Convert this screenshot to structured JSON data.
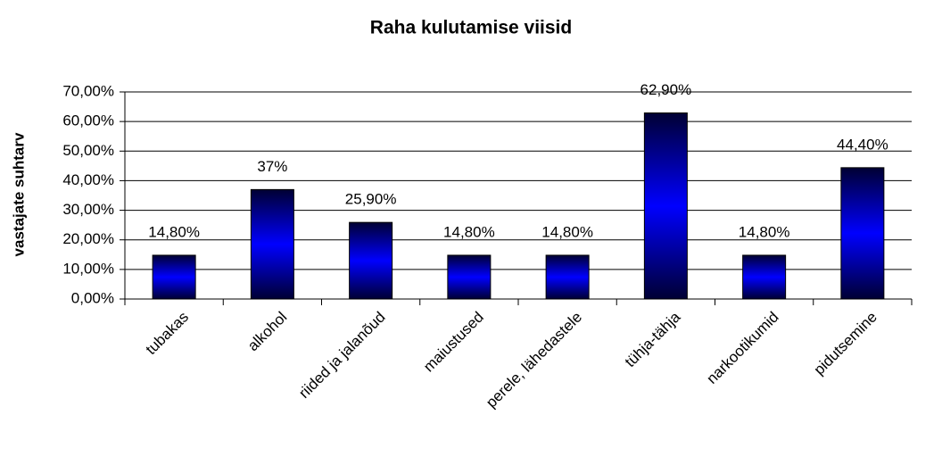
{
  "chart_data": {
    "type": "bar",
    "title": "Raha kulutamise viisid",
    "y_label": "vastajate suhtarv",
    "categories": [
      "tubakas",
      "alkohol",
      "riided ja jalanõud",
      "maiustused",
      "perele, lähedastele",
      "tühja-tähja",
      "narkootikumid",
      "pidutsemine"
    ],
    "values": [
      14.8,
      37,
      25.9,
      14.8,
      14.8,
      62.9,
      14.8,
      44.4
    ],
    "value_labels": [
      "14,80%",
      "37%",
      "25,90%",
      "14,80%",
      "14,80%",
      "62,90%",
      "14,80%",
      "44,40%"
    ],
    "color": "#0000ff",
    "ylim": [
      0,
      70
    ],
    "yticks": [
      {
        "value": 0,
        "label": "0,00%"
      },
      {
        "value": 10,
        "label": "10,00%"
      },
      {
        "value": 20,
        "label": "20,00%"
      },
      {
        "value": 30,
        "label": "30,00%"
      },
      {
        "value": 40,
        "label": "40,00%"
      },
      {
        "value": 50,
        "label": "50,00%"
      },
      {
        "value": 60,
        "label": "60,00%"
      },
      {
        "value": 70,
        "label": "70,00%"
      }
    ],
    "grid": true
  }
}
